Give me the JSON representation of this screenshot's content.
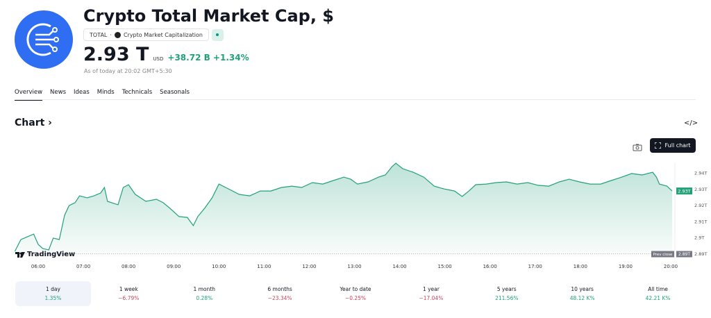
{
  "header": {
    "title": "Crypto Total Market Cap, $",
    "symbol": "TOTAL",
    "separator": "·",
    "exchange": "Crypto Market Capitalization",
    "price": "2.93 T",
    "currency": "USD",
    "change": "+38.72 B +1.34%",
    "as_of": "As of today at 20:02 GMT+5:30",
    "logo_color": "#2f6df2",
    "status_icon": "market-open-dot"
  },
  "tabs": [
    {
      "label": "Overview",
      "active": true
    },
    {
      "label": "News"
    },
    {
      "label": "Ideas"
    },
    {
      "label": "Minds"
    },
    {
      "label": "Technicals"
    },
    {
      "label": "Seasonals"
    }
  ],
  "chart_section": {
    "title": "Chart",
    "chevron": "›",
    "embed_icon": "</>",
    "full_chart_label": "Full chart",
    "camera_icon": "camera-icon",
    "brand": "TradingView"
  },
  "chart_data": {
    "type": "area",
    "line_color": "#22a07a",
    "x": [
      "05:29",
      "05:37",
      "05:48",
      "05:54",
      "06:00",
      "06:06",
      "06:14",
      "06:20",
      "06:28",
      "06:35",
      "06:41",
      "06:49",
      "06:55",
      "07:05",
      "07:14",
      "07:23",
      "07:28",
      "07:32",
      "07:46",
      "07:53",
      "08:00",
      "08:09",
      "08:23",
      "08:37",
      "08:46",
      "08:55",
      "09:07",
      "09:18",
      "09:26",
      "09:32",
      "09:41",
      "09:51",
      "10:00",
      "10:09",
      "10:27",
      "10:41",
      "10:55",
      "11:09",
      "11:23",
      "11:37",
      "11:50",
      "12:04",
      "12:18",
      "12:32",
      "12:46",
      "12:55",
      "13:04",
      "13:18",
      "13:32",
      "13:41",
      "13:50",
      "13:55",
      "14:04",
      "14:18",
      "14:32",
      "14:46",
      "14:59",
      "15:13",
      "15:23",
      "15:32",
      "15:41",
      "15:55",
      "16:08",
      "16:22",
      "16:36",
      "16:50",
      "17:04",
      "17:18",
      "17:32",
      "17:45",
      "17:59",
      "18:13",
      "18:27",
      "18:41",
      "18:55",
      "19:08",
      "19:22",
      "19:36",
      "19:41",
      "19:45",
      "19:55",
      "20:02"
    ],
    "y": [
      2.8915,
      2.8988,
      2.901,
      2.9022,
      2.8958,
      2.8932,
      2.8924,
      2.8997,
      2.8988,
      2.9138,
      2.9198,
      2.9216,
      2.9258,
      2.9246,
      2.9258,
      2.9276,
      2.931,
      2.9224,
      2.9203,
      2.931,
      2.9327,
      2.9267,
      2.9224,
      2.9237,
      2.9216,
      2.9181,
      2.913,
      2.9125,
      2.9074,
      2.913,
      2.9181,
      2.9246,
      2.9331,
      2.931,
      2.9267,
      2.9258,
      2.9288,
      2.9288,
      2.931,
      2.9318,
      2.931,
      2.934,
      2.9331,
      2.9353,
      2.9374,
      2.9361,
      2.9331,
      2.9344,
      2.9374,
      2.9387,
      2.9439,
      2.946,
      2.9426,
      2.9404,
      2.9374,
      2.9318,
      2.9301,
      2.9288,
      2.9254,
      2.9288,
      2.9327,
      2.9331,
      2.934,
      2.9344,
      2.9331,
      2.934,
      2.9323,
      2.9318,
      2.9344,
      2.9361,
      2.9344,
      2.9331,
      2.9331,
      2.9353,
      2.9374,
      2.9396,
      2.9387,
      2.9404,
      2.9374,
      2.9331,
      2.9318,
      2.9288
    ],
    "x_ticks": [
      "06:00",
      "07:00",
      "08:00",
      "09:00",
      "10:00",
      "11:00",
      "12:00",
      "13:00",
      "14:00",
      "15:00",
      "16:00",
      "17:00",
      "18:00",
      "19:00",
      "20:00"
    ],
    "y_ticks": [
      {
        "v": 2.94,
        "label": "2.94T"
      },
      {
        "v": 2.93,
        "label": "2.93T"
      },
      {
        "v": 2.92,
        "label": "2.92T"
      },
      {
        "v": 2.91,
        "label": "2.91T"
      },
      {
        "v": 2.9,
        "label": "2.9T"
      },
      {
        "v": 2.89,
        "label": "2.89T"
      }
    ],
    "last_price_label": "2.93T",
    "prev_close": {
      "value": 2.89,
      "label": "Prev close",
      "value_label": "2.89T"
    },
    "ylim": [
      2.887,
      2.948
    ]
  },
  "periods": [
    {
      "label": "1 day",
      "value": "1.35%",
      "dir": "pos",
      "active": true
    },
    {
      "label": "1 week",
      "value": "−6.79%",
      "dir": "neg"
    },
    {
      "label": "1 month",
      "value": "0.28%",
      "dir": "pos"
    },
    {
      "label": "6 months",
      "value": "−23.34%",
      "dir": "neg"
    },
    {
      "label": "Year to date",
      "value": "−0.25%",
      "dir": "neg"
    },
    {
      "label": "1 year",
      "value": "−17.04%",
      "dir": "neg"
    },
    {
      "label": "5 years",
      "value": "211.56%",
      "dir": "pos"
    },
    {
      "label": "10 years",
      "value": "48.12 K%",
      "dir": "pos"
    },
    {
      "label": "All time",
      "value": "42.21 K%",
      "dir": "pos"
    }
  ]
}
